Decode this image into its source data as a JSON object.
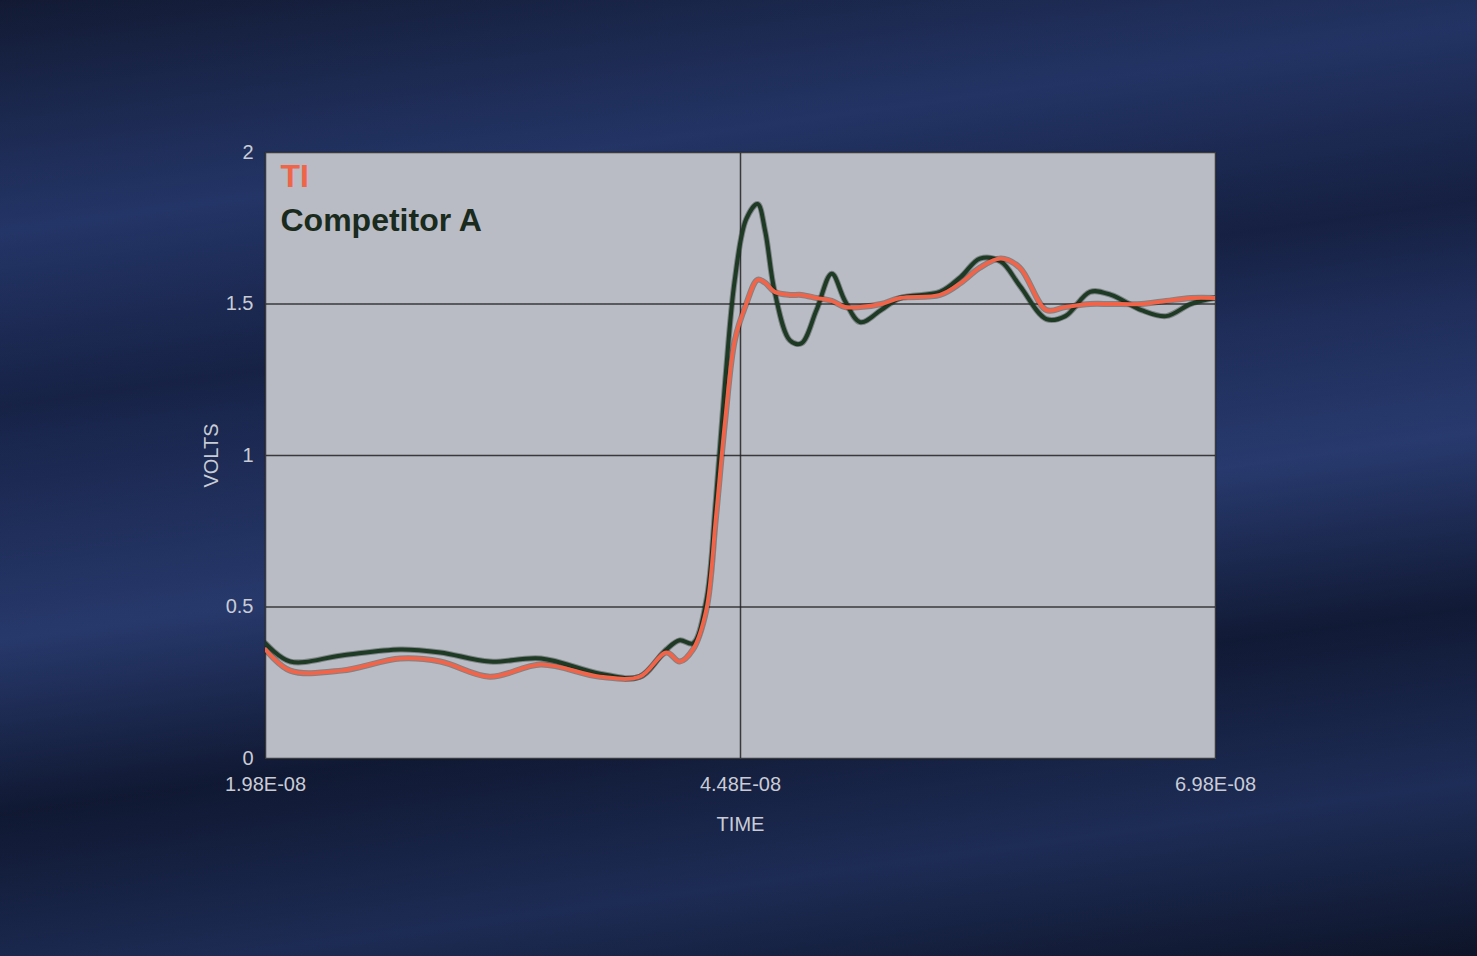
{
  "chart_data": {
    "type": "line",
    "x_label": "TIME",
    "y_label": "VOLTS",
    "x": [
      1.98e-08,
      2.11e-08,
      2.38e-08,
      2.69e-08,
      2.9e-08,
      3.16e-08,
      3.43e-08,
      3.74e-08,
      3.95e-08,
      4.09e-08,
      4.16e-08,
      4.23e-08,
      4.3e-08,
      4.35e-08,
      4.4e-08,
      4.45e-08,
      4.51e-08,
      4.57e-08,
      4.61e-08,
      4.66e-08,
      4.74e-08,
      4.8e-08,
      4.88e-08,
      4.96e-08,
      5.03e-08,
      5.11e-08,
      5.22e-08,
      5.32e-08,
      5.53e-08,
      5.64e-08,
      5.74e-08,
      5.85e-08,
      5.95e-08,
      6.09e-08,
      6.19e-08,
      6.32e-08,
      6.43e-08,
      6.59e-08,
      6.72e-08,
      6.85e-08,
      6.98e-08
    ],
    "series": [
      {
        "name": "Competitor A",
        "color": "#1e3a24",
        "values": [
          0.38,
          0.32,
          0.34,
          0.36,
          0.35,
          0.32,
          0.33,
          0.28,
          0.27,
          0.36,
          0.39,
          0.38,
          0.52,
          0.85,
          1.25,
          1.58,
          1.78,
          1.83,
          1.74,
          1.54,
          1.38,
          1.37,
          1.48,
          1.6,
          1.51,
          1.44,
          1.48,
          1.52,
          1.54,
          1.59,
          1.65,
          1.64,
          1.56,
          1.45,
          1.46,
          1.54,
          1.53,
          1.48,
          1.46,
          1.5,
          1.52
        ]
      },
      {
        "name": "TI",
        "color": "#f0644a",
        "values": [
          0.36,
          0.29,
          0.29,
          0.33,
          0.32,
          0.27,
          0.31,
          0.27,
          0.27,
          0.35,
          0.32,
          0.36,
          0.49,
          0.79,
          1.12,
          1.38,
          1.5,
          1.58,
          1.57,
          1.54,
          1.53,
          1.53,
          1.52,
          1.51,
          1.49,
          1.49,
          1.5,
          1.52,
          1.53,
          1.57,
          1.62,
          1.65,
          1.62,
          1.48,
          1.49,
          1.5,
          1.5,
          1.5,
          1.51,
          1.52,
          1.52
        ]
      }
    ],
    "xlim": [
      1.98e-08,
      6.98e-08
    ],
    "xticks": [
      {
        "value": 1.98e-08,
        "label": "1.98E-08"
      },
      {
        "value": 4.48e-08,
        "label": "4.48E-08"
      },
      {
        "value": 6.98e-08,
        "label": "6.98E-08"
      }
    ],
    "ylim": [
      0,
      2
    ],
    "yticks": [
      0,
      0.5,
      1,
      1.5,
      2
    ],
    "grid": true,
    "legend": "top-left"
  }
}
